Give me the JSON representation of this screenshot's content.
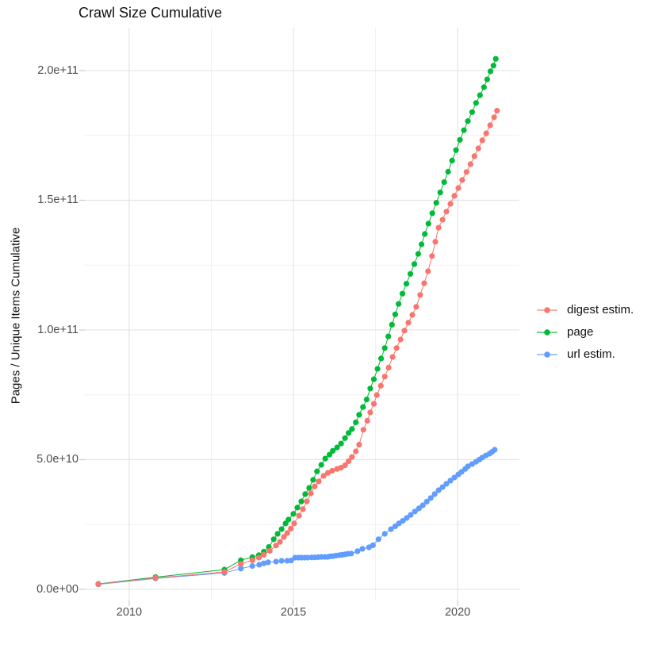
{
  "title": "Crawl Size Cumulative",
  "y_axis_label": "Pages / Unique Items Cumulative",
  "colors": {
    "digest": "#F8766D",
    "page": "#00BA38",
    "url": "#619CFF",
    "grid_major": "#E4E4E4",
    "grid_minor": "#F1F1F1",
    "tick_mark": "#CFCFCF",
    "tick_label": "#4D4D4D",
    "background": "#FFFFFF"
  },
  "legend": [
    {
      "id": "digest",
      "label": "digest estim.",
      "color": "#F8766D"
    },
    {
      "id": "page",
      "label": "page",
      "color": "#00BA38"
    },
    {
      "id": "url",
      "label": "url estim.",
      "color": "#619CFF"
    }
  ],
  "chart_data": {
    "type": "line",
    "title": "Crawl Size Cumulative",
    "xlabel": "",
    "ylabel": "Pages / Unique Items Cumulative",
    "x_units": "year",
    "y_units": "pages / unique items (count)",
    "xlim": [
      2008.65,
      2021.88
    ],
    "ylim": [
      -4300000000.0,
      216500000000.0
    ],
    "x_ticks": [
      2010,
      2015,
      2020
    ],
    "x_tick_labels": [
      "2010",
      "2015",
      "2020"
    ],
    "x_minor_ticks": [
      2012.5,
      2017.5
    ],
    "y_ticks": [
      0,
      50000000000.0,
      100000000000.0,
      150000000000.0,
      200000000000.0
    ],
    "y_tick_labels": [
      "0.0e+00",
      "5.0e+10",
      "1.0e+11",
      "1.5e+11",
      "2.0e+11"
    ],
    "y_minor_ticks": [
      25000000000.0,
      75000000000.0,
      125000000000.0,
      175000000000.0
    ],
    "grid": true,
    "legend_position": "right",
    "marker": "point",
    "series": [
      {
        "name": "page",
        "color": "#00BA38",
        "points": [
          [
            2009.06,
            2100000000.0
          ],
          [
            2010.8,
            4700000000.0
          ],
          [
            2012.9,
            7600000000.0
          ],
          [
            2013.4,
            11200000000.0
          ],
          [
            2013.75,
            12400000000.0
          ],
          [
            2013.95,
            13200000000.0
          ],
          [
            2014.1,
            14500000000.0
          ],
          [
            2014.25,
            16300000000.0
          ],
          [
            2014.4,
            19300000000.0
          ],
          [
            2014.52,
            21400000000.0
          ],
          [
            2014.64,
            23200000000.0
          ],
          [
            2014.76,
            25400000000.0
          ],
          [
            2014.85,
            26900000000.0
          ],
          [
            2015.0,
            29100000000.0
          ],
          [
            2015.12,
            31500000000.0
          ],
          [
            2015.24,
            33900000000.0
          ],
          [
            2015.36,
            36700000000.0
          ],
          [
            2015.48,
            39100000000.0
          ],
          [
            2015.6,
            42200000000.0
          ],
          [
            2015.72,
            45500000000.0
          ],
          [
            2015.85,
            48000000000.0
          ],
          [
            2015.97,
            50400000000.0
          ],
          [
            2016.1,
            51900000000.0
          ],
          [
            2016.2,
            53400000000.0
          ],
          [
            2016.33,
            54700000000.0
          ],
          [
            2016.45,
            56200000000.0
          ],
          [
            2016.57,
            58300000000.0
          ],
          [
            2016.68,
            60300000000.0
          ],
          [
            2016.78,
            61800000000.0
          ],
          [
            2016.9,
            64400000000.0
          ],
          [
            2017.0,
            67300000000.0
          ],
          [
            2017.12,
            70300000000.0
          ],
          [
            2017.23,
            73200000000.0
          ],
          [
            2017.34,
            77400000000.0
          ],
          [
            2017.45,
            81000000000.0
          ],
          [
            2017.56,
            85000000000.0
          ],
          [
            2017.67,
            89000000000.0
          ],
          [
            2017.78,
            93000000000.0
          ],
          [
            2017.89,
            97500000000.0
          ],
          [
            2018.0,
            102000000000.0
          ],
          [
            2018.1,
            106000000000.0
          ],
          [
            2018.2,
            110000000000.0
          ],
          [
            2018.32,
            114000000000.0
          ],
          [
            2018.44,
            117800000000.0
          ],
          [
            2018.56,
            121600000000.0
          ],
          [
            2018.68,
            125400000000.0
          ],
          [
            2018.8,
            129300000000.0
          ],
          [
            2018.9,
            133000000000.0
          ],
          [
            2019.0,
            137000000000.0
          ],
          [
            2019.11,
            141000000000.0
          ],
          [
            2019.23,
            145000000000.0
          ],
          [
            2019.35,
            149000000000.0
          ],
          [
            2019.47,
            153000000000.0
          ],
          [
            2019.59,
            157000000000.0
          ],
          [
            2019.71,
            161000000000.0
          ],
          [
            2019.83,
            165300000000.0
          ],
          [
            2019.95,
            169300000000.0
          ],
          [
            2020.07,
            173300000000.0
          ],
          [
            2020.19,
            177000000000.0
          ],
          [
            2020.31,
            180500000000.0
          ],
          [
            2020.44,
            184000000000.0
          ],
          [
            2020.56,
            187500000000.0
          ],
          [
            2020.68,
            190500000000.0
          ],
          [
            2020.8,
            193600000000.0
          ],
          [
            2020.9,
            196600000000.0
          ],
          [
            2021.0,
            199700000000.0
          ],
          [
            2021.09,
            201900000000.0
          ],
          [
            2021.16,
            204500000000.0
          ]
        ]
      },
      {
        "name": "url estim.",
        "color": "#619CFF",
        "points": [
          [
            2009.06,
            1900000000.0
          ],
          [
            2010.8,
            4200000000.0
          ],
          [
            2012.9,
            6300000000.0
          ],
          [
            2013.4,
            8000000000.0
          ],
          [
            2013.75,
            9000000000.0
          ],
          [
            2013.96,
            9500000000.0
          ],
          [
            2014.1,
            10000000000.0
          ],
          [
            2014.23,
            10400000000.0
          ],
          [
            2014.47,
            10700000000.0
          ],
          [
            2014.64,
            11000000000.0
          ],
          [
            2014.81,
            11000000000.0
          ],
          [
            2014.93,
            11100000000.0
          ],
          [
            2015.05,
            12200000000.0
          ],
          [
            2015.15,
            12200000000.0
          ],
          [
            2015.24,
            12200000000.0
          ],
          [
            2015.34,
            12200000000.0
          ],
          [
            2015.43,
            12200000000.0
          ],
          [
            2015.55,
            12300000000.0
          ],
          [
            2015.65,
            12300000000.0
          ],
          [
            2015.75,
            12400000000.0
          ],
          [
            2015.85,
            12500000000.0
          ],
          [
            2015.95,
            12500000000.0
          ],
          [
            2016.04,
            12500000000.0
          ],
          [
            2016.12,
            12700000000.0
          ],
          [
            2016.21,
            12800000000.0
          ],
          [
            2016.3,
            13000000000.0
          ],
          [
            2016.4,
            13200000000.0
          ],
          [
            2016.48,
            13300000000.0
          ],
          [
            2016.57,
            13500000000.0
          ],
          [
            2016.66,
            13700000000.0
          ],
          [
            2016.76,
            13800000000.0
          ],
          [
            2016.95,
            14700000000.0
          ],
          [
            2017.1,
            15600000000.0
          ],
          [
            2017.3,
            16200000000.0
          ],
          [
            2017.42,
            17000000000.0
          ],
          [
            2017.59,
            19300000000.0
          ],
          [
            2017.78,
            21400000000.0
          ],
          [
            2017.97,
            23200000000.0
          ],
          [
            2018.1,
            24300000000.0
          ],
          [
            2018.21,
            25400000000.0
          ],
          [
            2018.33,
            26400000000.0
          ],
          [
            2018.45,
            27500000000.0
          ],
          [
            2018.57,
            28700000000.0
          ],
          [
            2018.7,
            30000000000.0
          ],
          [
            2018.82,
            31200000000.0
          ],
          [
            2018.94,
            32400000000.0
          ],
          [
            2019.06,
            33800000000.0
          ],
          [
            2019.18,
            35200000000.0
          ],
          [
            2019.3,
            36700000000.0
          ],
          [
            2019.42,
            38200000000.0
          ],
          [
            2019.54,
            39400000000.0
          ],
          [
            2019.66,
            40700000000.0
          ],
          [
            2019.78,
            41900000000.0
          ],
          [
            2019.9,
            43100000000.0
          ],
          [
            2020.02,
            44300000000.0
          ],
          [
            2020.12,
            45300000000.0
          ],
          [
            2020.23,
            46400000000.0
          ],
          [
            2020.31,
            47400000000.0
          ],
          [
            2020.44,
            48300000000.0
          ],
          [
            2020.56,
            49200000000.0
          ],
          [
            2020.66,
            50000000000.0
          ],
          [
            2020.75,
            50800000000.0
          ],
          [
            2020.86,
            51600000000.0
          ],
          [
            2020.97,
            52300000000.0
          ],
          [
            2021.05,
            53000000000.0
          ],
          [
            2021.13,
            53800000000.0
          ]
        ]
      },
      {
        "name": "digest estim.",
        "color": "#F8766D",
        "points": [
          [
            2009.06,
            2000000000.0
          ],
          [
            2010.8,
            4400000000.0
          ],
          [
            2012.9,
            6700000000.0
          ],
          [
            2013.4,
            9800000000.0
          ],
          [
            2013.75,
            11200000000.0
          ],
          [
            2013.95,
            12200000000.0
          ],
          [
            2014.1,
            13300000000.0
          ],
          [
            2014.28,
            14800000000.0
          ],
          [
            2014.47,
            16900000000.0
          ],
          [
            2014.59,
            18300000000.0
          ],
          [
            2014.71,
            20200000000.0
          ],
          [
            2014.81,
            21700000000.0
          ],
          [
            2014.92,
            23400000000.0
          ],
          [
            2015.02,
            25400000000.0
          ],
          [
            2015.17,
            28400000000.0
          ],
          [
            2015.29,
            30900000000.0
          ],
          [
            2015.41,
            33900000000.0
          ],
          [
            2015.53,
            37000000000.0
          ],
          [
            2015.65,
            39700000000.0
          ],
          [
            2015.77,
            41600000000.0
          ],
          [
            2015.92,
            43700000000.0
          ],
          [
            2016.05,
            44900000000.0
          ],
          [
            2016.18,
            45700000000.0
          ],
          [
            2016.33,
            46400000000.0
          ],
          [
            2016.45,
            46900000000.0
          ],
          [
            2016.57,
            47800000000.0
          ],
          [
            2016.68,
            49400000000.0
          ],
          [
            2016.78,
            51000000000.0
          ],
          [
            2016.9,
            53200000000.0
          ],
          [
            2017.0,
            55800000000.0
          ],
          [
            2017.13,
            61500000000.0
          ],
          [
            2017.25,
            65000000000.0
          ],
          [
            2017.34,
            68200000000.0
          ],
          [
            2017.45,
            71500000000.0
          ],
          [
            2017.54,
            74900000000.0
          ],
          [
            2017.66,
            78500000000.0
          ],
          [
            2017.78,
            82000000000.0
          ],
          [
            2017.9,
            85500000000.0
          ],
          [
            2018.02,
            89600000000.0
          ],
          [
            2018.14,
            93000000000.0
          ],
          [
            2018.26,
            96300000000.0
          ],
          [
            2018.38,
            99700000000.0
          ],
          [
            2018.5,
            102800000000.0
          ],
          [
            2018.62,
            105800000000.0
          ],
          [
            2018.74,
            108900000000.0
          ],
          [
            2018.86,
            113500000000.0
          ],
          [
            2018.98,
            118000000000.0
          ],
          [
            2019.1,
            122600000000.0
          ],
          [
            2019.22,
            128500000000.0
          ],
          [
            2019.32,
            134000000000.0
          ],
          [
            2019.42,
            139400000000.0
          ],
          [
            2019.54,
            142500000000.0
          ],
          [
            2019.66,
            145600000000.0
          ],
          [
            2019.78,
            148600000000.0
          ],
          [
            2019.9,
            151700000000.0
          ],
          [
            2020.02,
            154700000000.0
          ],
          [
            2020.14,
            157800000000.0
          ],
          [
            2020.27,
            160900000000.0
          ],
          [
            2020.39,
            163900000000.0
          ],
          [
            2020.51,
            167000000000.0
          ],
          [
            2020.63,
            170000000000.0
          ],
          [
            2020.75,
            173100000000.0
          ],
          [
            2020.87,
            175800000000.0
          ],
          [
            2020.99,
            178900000000.0
          ],
          [
            2021.11,
            182000000000.0
          ],
          [
            2021.2,
            184500000000.0
          ]
        ]
      }
    ]
  }
}
